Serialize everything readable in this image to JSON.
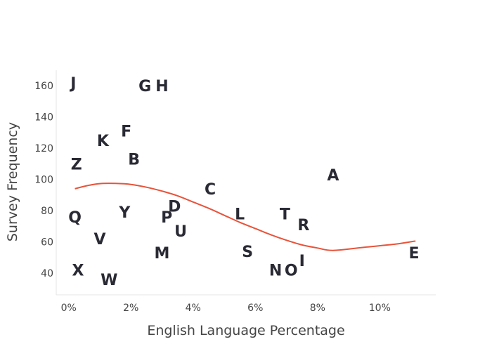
{
  "chart_data": {
    "type": "scatter",
    "xlabel": "English Language Percentage",
    "ylabel": "Survey Frequency",
    "xlim": [
      -0.4,
      11.8
    ],
    "ylim": [
      26,
      170
    ],
    "x_ticks": [
      0,
      2,
      4,
      6,
      8,
      10
    ],
    "x_tick_labels": [
      "0%",
      "2%",
      "4%",
      "6%",
      "8%",
      "10%"
    ],
    "y_ticks": [
      40,
      60,
      80,
      100,
      120,
      140,
      160
    ],
    "y_tick_labels": [
      "40",
      "60",
      "80",
      "100",
      "120",
      "140",
      "160"
    ],
    "grid": false,
    "points": [
      {
        "label": "J",
        "x": 0.15,
        "y": 162
      },
      {
        "label": "G",
        "x": 2.45,
        "y": 160
      },
      {
        "label": "H",
        "x": 3.0,
        "y": 160
      },
      {
        "label": "F",
        "x": 1.85,
        "y": 131
      },
      {
        "label": "K",
        "x": 1.1,
        "y": 125
      },
      {
        "label": "B",
        "x": 2.1,
        "y": 113
      },
      {
        "label": "Z",
        "x": 0.25,
        "y": 110
      },
      {
        "label": "A",
        "x": 8.5,
        "y": 103
      },
      {
        "label": "C",
        "x": 4.55,
        "y": 94
      },
      {
        "label": "D",
        "x": 3.4,
        "y": 83
      },
      {
        "label": "Y",
        "x": 1.8,
        "y": 79
      },
      {
        "label": "Q",
        "x": 0.2,
        "y": 76
      },
      {
        "label": "P",
        "x": 3.15,
        "y": 76
      },
      {
        "label": "L",
        "x": 5.5,
        "y": 78
      },
      {
        "label": "T",
        "x": 6.95,
        "y": 78
      },
      {
        "label": "R",
        "x": 7.55,
        "y": 71
      },
      {
        "label": "U",
        "x": 3.6,
        "y": 67
      },
      {
        "label": "V",
        "x": 1.0,
        "y": 62
      },
      {
        "label": "M",
        "x": 3.0,
        "y": 53
      },
      {
        "label": "S",
        "x": 5.75,
        "y": 54
      },
      {
        "label": "E",
        "x": 11.1,
        "y": 53
      },
      {
        "label": "I",
        "x": 7.5,
        "y": 48
      },
      {
        "label": "N",
        "x": 6.65,
        "y": 42
      },
      {
        "label": "O",
        "x": 7.15,
        "y": 42
      },
      {
        "label": "X",
        "x": 0.3,
        "y": 42
      },
      {
        "label": "W",
        "x": 1.3,
        "y": 36
      }
    ],
    "trend_line": {
      "color": "#e8533a",
      "x": [
        0.2,
        0.6,
        1.0,
        1.5,
        2.0,
        2.5,
        3.0,
        3.5,
        4.0,
        4.5,
        5.0,
        5.5,
        6.0,
        6.5,
        7.0,
        7.5,
        8.0,
        8.5,
        9.5,
        10.5,
        11.15
      ],
      "y": [
        94,
        96,
        97.3,
        97.4,
        96.8,
        95,
        92.5,
        89.5,
        85.5,
        81.5,
        77,
        72.5,
        68.5,
        64.5,
        61,
        58,
        56,
        54.5,
        56.5,
        58.5,
        60.5
      ]
    }
  }
}
